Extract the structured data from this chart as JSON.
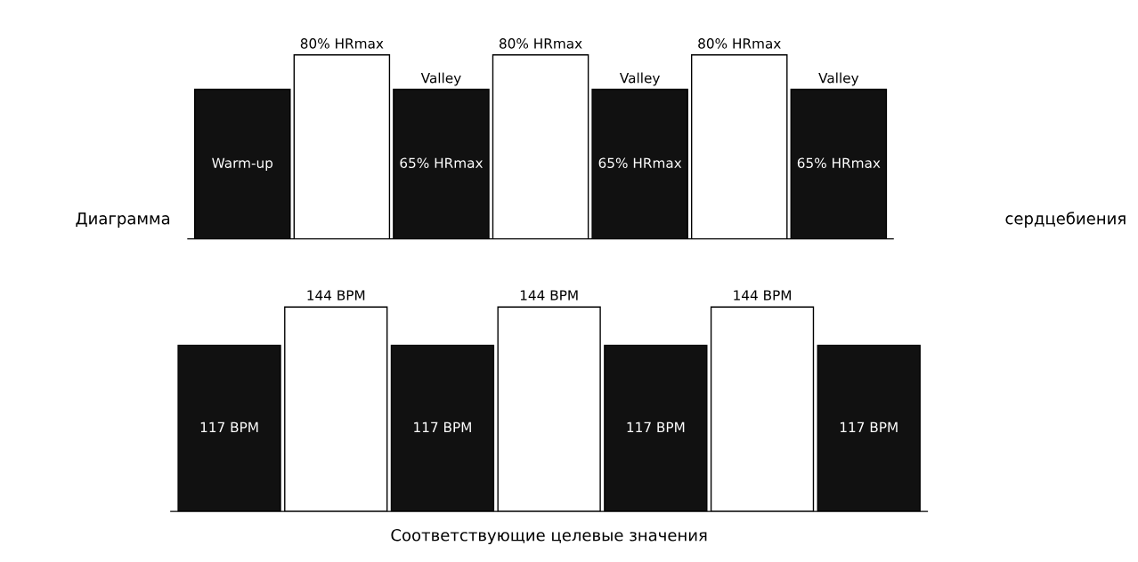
{
  "chart_data": [
    {
      "type": "bar",
      "ylabel": "Диаграмма",
      "y2label": "сердцебиения",
      "categories": [
        null,
        null,
        "Valley",
        null,
        "Valley",
        null,
        "Valley"
      ],
      "values": [
        65,
        80,
        65,
        80,
        65,
        80,
        65
      ],
      "colors": [
        "#111111",
        "#ffffff",
        "#111111",
        "#ffffff",
        "#111111",
        "#ffffff",
        "#111111"
      ],
      "value_labels": [
        "Warm-up",
        "80% HRmax",
        "65% HRmax",
        "80% HRmax",
        "65% HRmax",
        "80% HRmax",
        "65% HRmax"
      ]
    },
    {
      "type": "bar",
      "xlabel": "Соответствующие целевые значения",
      "categories": [
        null,
        null,
        null,
        null,
        null,
        null,
        null
      ],
      "values": [
        117,
        144,
        117,
        144,
        117,
        144,
        117
      ],
      "colors": [
        "#111111",
        "#ffffff",
        "#111111",
        "#ffffff",
        "#111111",
        "#ffffff",
        "#111111"
      ],
      "value_labels": [
        "117 BPM",
        "144 BPM",
        "117 BPM",
        "144 BPM",
        "117 BPM",
        "144 BPM",
        "117 BPM"
      ]
    }
  ]
}
